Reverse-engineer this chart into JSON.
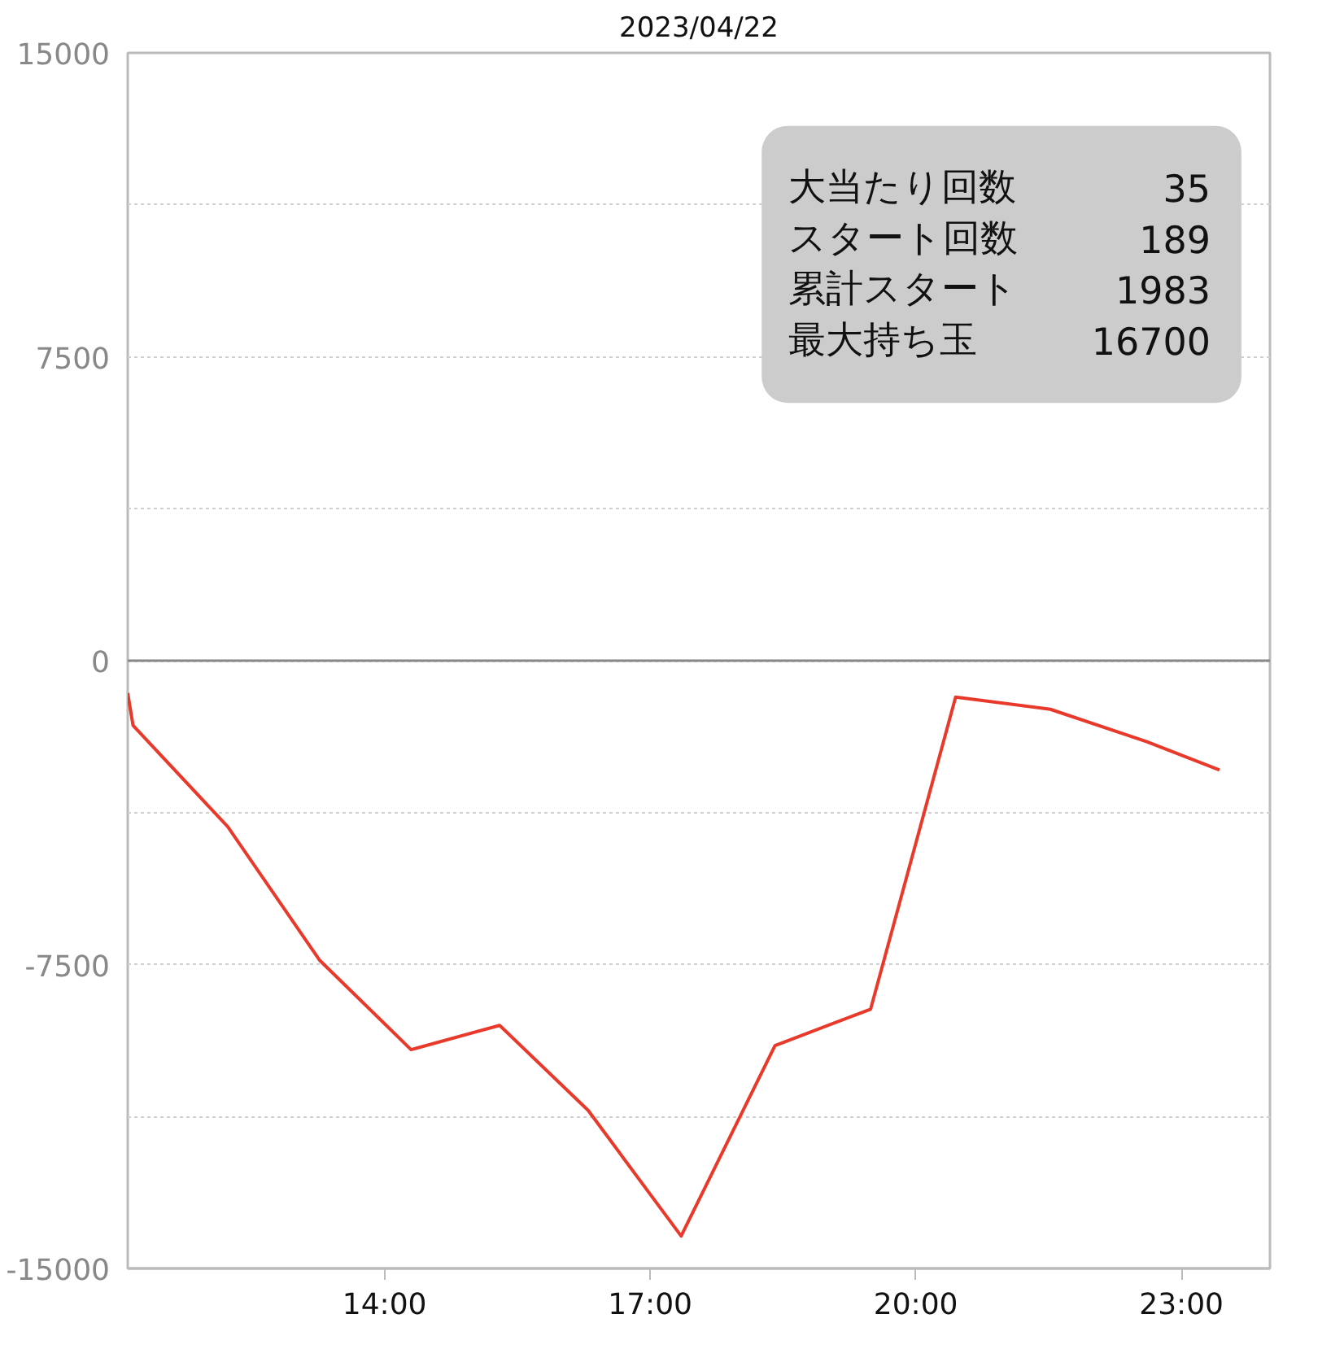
{
  "chart_data": {
    "type": "line",
    "title": "2023/04/22",
    "x": [
      11.1,
      11.16,
      12.23,
      13.27,
      14.3,
      15.3,
      16.3,
      17.35,
      18.41,
      19.49,
      20.45,
      21.52,
      22.61,
      23.43
    ],
    "series": [
      {
        "color": "#e8392b",
        "values": [
          -800,
          -1600,
          -4100,
          -7400,
          -9600,
          -9000,
          -11100,
          -14200,
          -9500,
          -8600,
          -900,
          -1200,
          -2000,
          -2700
        ]
      }
    ],
    "xlim": [
      11.1,
      24
    ],
    "ylim": [
      -15000,
      15000
    ],
    "xticks": [
      {
        "value": 14,
        "label": "14:00"
      },
      {
        "value": 17,
        "label": "17:00"
      },
      {
        "value": 20,
        "label": "20:00"
      },
      {
        "value": 23,
        "label": "23:00"
      }
    ],
    "yticks": [
      15000,
      {
        "value": 11250,
        "label": null
      },
      7500,
      {
        "value": 3750,
        "label": null
      },
      0,
      {
        "value": -3750,
        "label": null
      },
      -7500,
      {
        "value": -11250,
        "label": null
      },
      -15000
    ],
    "grid": "y",
    "marker": "none",
    "line_style": "solid",
    "ref_lines": [
      {
        "axis": "y",
        "value": 0,
        "color": "#888888"
      }
    ],
    "annotations": [
      "大当たり回数",
      "35",
      "スタート回数",
      "189",
      "累計スタート",
      "1983",
      "最大持ち玉",
      "16700"
    ]
  }
}
